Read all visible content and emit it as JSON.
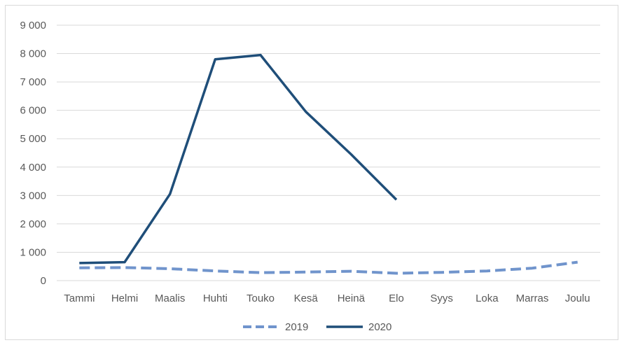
{
  "chart_data": {
    "type": "line",
    "categories": [
      "Tammi",
      "Helmi",
      "Maalis",
      "Huhti",
      "Touko",
      "Kesä",
      "Heinä",
      "Elo",
      "Syys",
      "Loka",
      "Marras",
      "Joulu"
    ],
    "ylim": [
      0,
      9000
    ],
    "yticks": [
      0,
      1000,
      2000,
      3000,
      4000,
      5000,
      6000,
      7000,
      8000,
      9000
    ],
    "ytick_labels": [
      "0",
      "1 000",
      "2 000",
      "3 000",
      "4 000",
      "5 000",
      "6 000",
      "7 000",
      "8 000",
      "9 000"
    ],
    "grid": "horizontal",
    "legend_position": "bottom",
    "series": [
      {
        "name": "2019",
        "color": "#7094CC",
        "style": "dashed",
        "values": [
          450,
          460,
          420,
          340,
          280,
          300,
          330,
          260,
          290,
          340,
          440,
          650
        ]
      },
      {
        "name": "2020",
        "color": "#1F4E79",
        "style": "solid",
        "values": [
          620,
          650,
          3050,
          7800,
          7950,
          5950,
          4450,
          2850,
          null,
          null,
          null,
          null
        ]
      }
    ]
  }
}
